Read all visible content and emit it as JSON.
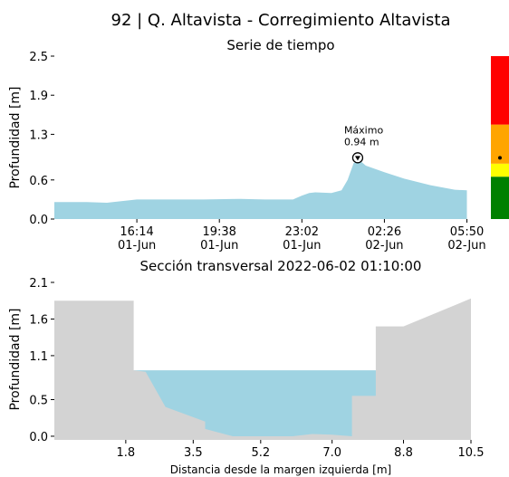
{
  "title": "92 | Q. Altavista - Corregimiento Altavista",
  "colors": {
    "water": "#9fd3e2",
    "terrain": "#d3d3d3",
    "alert_red": "#ff0000",
    "alert_orange": "#ffa500",
    "alert_yellow": "#ffff00",
    "alert_green": "#008000"
  },
  "chart_data": [
    {
      "type": "area",
      "title": "Serie de tiempo",
      "xlabel": "",
      "ylabel": "Profundidad [m]",
      "ylim": [
        0,
        2.5
      ],
      "yticks": [
        0.0,
        0.6,
        1.3,
        1.9,
        2.5
      ],
      "ytick_labels": [
        "0.0",
        "0.6",
        "1.3",
        "1.9",
        "2.5"
      ],
      "xlim": [
        "2022-06-01T12:50",
        "2022-06-02T06:00"
      ],
      "xticks": [
        "2022-06-01T16:14",
        "2022-06-01T19:38",
        "2022-06-01T23:02",
        "2022-06-02T02:26",
        "2022-06-02T05:50"
      ],
      "xtick_labels": [
        [
          "16:14",
          "01-Jun"
        ],
        [
          "19:38",
          "01-Jun"
        ],
        [
          "23:02",
          "01-Jun"
        ],
        [
          "02:26",
          "02-Jun"
        ],
        [
          "05:50",
          "02-Jun"
        ]
      ],
      "x": [
        "2022-06-01T12:50",
        "2022-06-01T14:10",
        "2022-06-01T15:00",
        "2022-06-01T16:14",
        "2022-06-01T17:30",
        "2022-06-01T19:00",
        "2022-06-01T20:30",
        "2022-06-01T21:30",
        "2022-06-01T22:40",
        "2022-06-01T23:02",
        "2022-06-01T23:20",
        "2022-06-01T23:35",
        "2022-06-02T00:15",
        "2022-06-02T00:40",
        "2022-06-02T00:55",
        "2022-06-02T01:10",
        "2022-06-02T01:25",
        "2022-06-02T01:40",
        "2022-06-02T02:26",
        "2022-06-02T03:15",
        "2022-06-02T04:20",
        "2022-06-02T05:20",
        "2022-06-02T05:50"
      ],
      "values": [
        0.26,
        0.26,
        0.25,
        0.3,
        0.3,
        0.3,
        0.31,
        0.3,
        0.3,
        0.36,
        0.4,
        0.41,
        0.4,
        0.44,
        0.6,
        0.86,
        0.9,
        0.82,
        0.72,
        0.62,
        0.52,
        0.45,
        0.44
      ],
      "annotation": {
        "label": "Máximo",
        "value_label": "0.94 m",
        "x": "2022-06-02T01:20",
        "y": 0.94
      },
      "alert_bar": {
        "levels": [
          {
            "color": "alert_green",
            "from": 0.0,
            "to": 0.65
          },
          {
            "color": "alert_yellow",
            "from": 0.65,
            "to": 0.85
          },
          {
            "color": "alert_orange",
            "from": 0.85,
            "to": 1.45
          },
          {
            "color": "alert_red",
            "from": 1.45,
            "to": 2.5
          }
        ],
        "marker": 0.94
      }
    },
    {
      "type": "area",
      "title": "Sección transversal 2022-06-02 01:10:00",
      "xlabel": "Distancia desde la margen izquierda [m]",
      "ylabel": "Profundidad [m]",
      "xlim": [
        0.0,
        10.5
      ],
      "ylim": [
        -0.05,
        2.1
      ],
      "xticks": [
        1.8,
        3.5,
        5.2,
        7.0,
        8.8,
        10.5
      ],
      "xtick_labels": [
        "1.8",
        "3.5",
        "5.2",
        "7.0",
        "8.8",
        "10.5"
      ],
      "yticks": [
        0.0,
        0.5,
        1.1,
        1.6,
        2.1
      ],
      "ytick_labels": [
        "0.0",
        "0.5",
        "1.1",
        "1.6",
        "2.1"
      ],
      "water_level": 0.9,
      "terrain": {
        "x": [
          0.0,
          2.0,
          2.0,
          2.3,
          2.8,
          3.8,
          3.8,
          4.5,
          5.2,
          6.0,
          6.5,
          7.0,
          7.5,
          7.5,
          8.1,
          8.1,
          8.1,
          8.8,
          8.8,
          10.5
        ],
        "y": [
          1.85,
          1.85,
          0.9,
          0.88,
          0.4,
          0.2,
          0.1,
          0.0,
          0.0,
          0.0,
          0.03,
          0.02,
          0.0,
          0.55,
          0.55,
          0.9,
          1.5,
          1.5,
          1.5,
          1.88
        ]
      }
    }
  ]
}
